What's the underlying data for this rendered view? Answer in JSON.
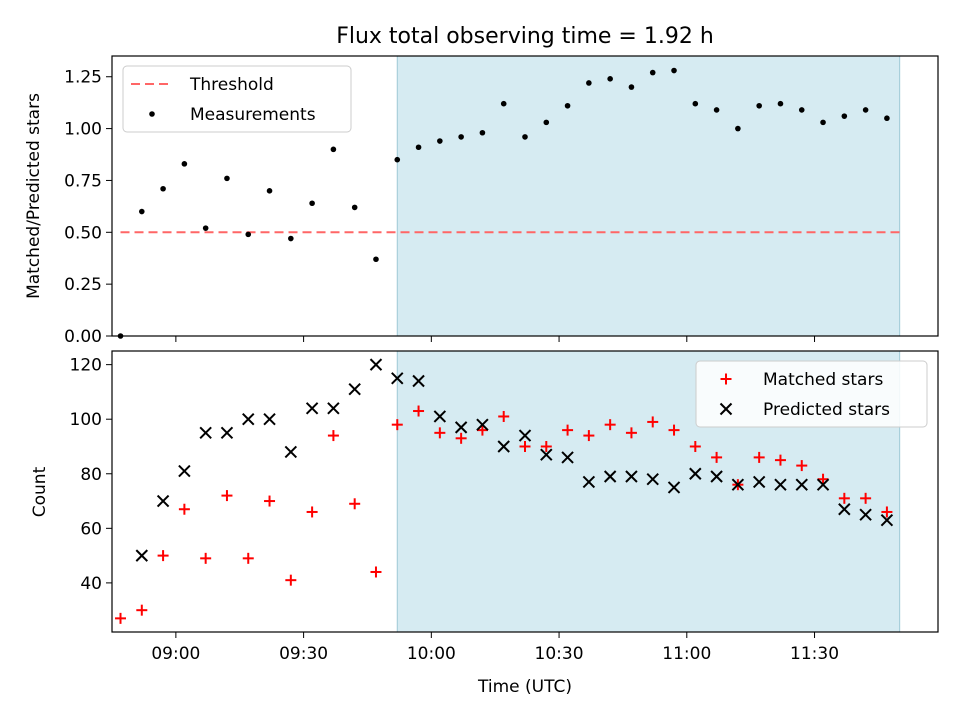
{
  "figure": {
    "title": "Flux total observing time = 1.92 h",
    "xlabel": "Time (UTC)",
    "x_ticks": [
      "09:00",
      "09:30",
      "10:00",
      "10:30",
      "11:00",
      "11:30"
    ],
    "x_tick_minutes": [
      540,
      570,
      600,
      630,
      660,
      690
    ],
    "xlim": [
      "08:45",
      "11:59"
    ],
    "shaded_interval": {
      "start": "09:52",
      "end": "11:50",
      "color": "#add8e6"
    }
  },
  "chart_data": [
    {
      "type": "scatter",
      "ylabel": "Matched/Predicted stars",
      "ylim": [
        0,
        1.35
      ],
      "y_ticks": [
        0.0,
        0.25,
        0.5,
        0.75,
        1.0,
        1.25
      ],
      "y_tick_labels": [
        "0.00",
        "0.25",
        "0.50",
        "0.75",
        "1.00",
        "1.25"
      ],
      "legend": "upper left",
      "threshold": {
        "name": "Threshold",
        "value": 0.5,
        "color": "#ff6666",
        "style": "dashed",
        "x_start": "08:47",
        "x_end": "11:50"
      },
      "series": [
        {
          "name": "Measurements",
          "color": "#000000",
          "marker": "dot",
          "x": [
            "08:47",
            "08:52",
            "08:57",
            "09:02",
            "09:07",
            "09:12",
            "09:17",
            "09:22",
            "09:27",
            "09:32",
            "09:37",
            "09:42",
            "09:47",
            "09:52",
            "09:57",
            "10:02",
            "10:07",
            "10:12",
            "10:17",
            "10:22",
            "10:27",
            "10:32",
            "10:37",
            "10:42",
            "10:47",
            "10:52",
            "10:57",
            "11:02",
            "11:07",
            "11:12",
            "11:17",
            "11:22",
            "11:27",
            "11:32",
            "11:37",
            "11:42",
            "11:47"
          ],
          "y": [
            0.0,
            0.6,
            0.71,
            0.83,
            0.52,
            0.76,
            0.49,
            0.7,
            0.47,
            0.64,
            0.9,
            0.62,
            0.37,
            0.85,
            0.91,
            0.94,
            0.96,
            0.98,
            1.12,
            0.96,
            1.03,
            1.11,
            1.22,
            1.24,
            1.2,
            1.27,
            1.28,
            1.12,
            1.09,
            1.0,
            1.11,
            1.12,
            1.09,
            1.03,
            1.06,
            1.09,
            1.05
          ]
        }
      ]
    },
    {
      "type": "scatter",
      "ylabel": "Count",
      "ylim": [
        22,
        125
      ],
      "y_ticks": [
        40,
        60,
        80,
        100,
        120
      ],
      "y_tick_labels": [
        "40",
        "60",
        "80",
        "100",
        "120"
      ],
      "legend": "upper right",
      "series": [
        {
          "name": "Matched stars",
          "color": "#ff0000",
          "marker": "plus",
          "x": [
            "08:47",
            "08:52",
            "08:57",
            "09:02",
            "09:07",
            "09:12",
            "09:17",
            "09:22",
            "09:27",
            "09:32",
            "09:37",
            "09:42",
            "09:47",
            "09:52",
            "09:57",
            "10:02",
            "10:07",
            "10:12",
            "10:17",
            "10:22",
            "10:27",
            "10:32",
            "10:37",
            "10:42",
            "10:47",
            "10:52",
            "10:57",
            "11:02",
            "11:07",
            "11:12",
            "11:17",
            "11:22",
            "11:27",
            "11:32",
            "11:37",
            "11:42",
            "11:47"
          ],
          "y": [
            27,
            30,
            50,
            67,
            49,
            72,
            49,
            70,
            41,
            66,
            94,
            69,
            44,
            98,
            103,
            95,
            93,
            96,
            101,
            90,
            90,
            96,
            94,
            98,
            95,
            99,
            96,
            90,
            86,
            76,
            86,
            85,
            83,
            78,
            71,
            71,
            66
          ]
        },
        {
          "name": "Predicted stars",
          "color": "#000000",
          "marker": "x",
          "x": [
            "08:52",
            "08:57",
            "09:02",
            "09:07",
            "09:12",
            "09:17",
            "09:22",
            "09:27",
            "09:32",
            "09:37",
            "09:42",
            "09:47",
            "09:52",
            "09:57",
            "10:02",
            "10:07",
            "10:12",
            "10:17",
            "10:22",
            "10:27",
            "10:32",
            "10:37",
            "10:42",
            "10:47",
            "10:52",
            "10:57",
            "11:02",
            "11:07",
            "11:12",
            "11:17",
            "11:22",
            "11:27",
            "11:32",
            "11:37",
            "11:42",
            "11:47"
          ],
          "y": [
            50,
            70,
            81,
            95,
            95,
            100,
            100,
            88,
            104,
            104,
            111,
            120,
            115,
            114,
            101,
            97,
            98,
            90,
            94,
            87,
            86,
            77,
            79,
            79,
            78,
            75,
            80,
            79,
            76,
            77,
            76,
            76,
            76,
            67,
            65,
            63
          ]
        }
      ]
    }
  ]
}
